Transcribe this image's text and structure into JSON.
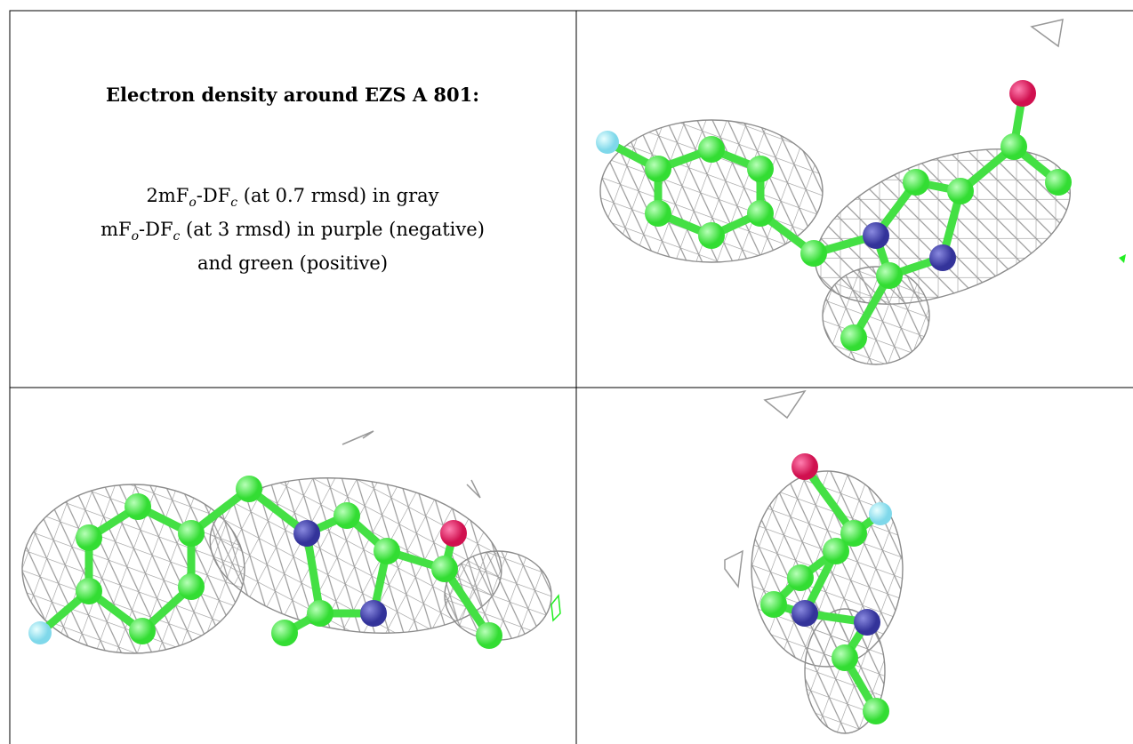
{
  "caption": {
    "title": "Electron density around EZS A 801:",
    "lines": [
      [
        {
          "text": "2mF"
        },
        {
          "text": "o",
          "sub": true
        },
        {
          "text": "-DF"
        },
        {
          "text": "c",
          "sub": true
        },
        {
          "text": " (at 0.7 rmsd) in gray"
        }
      ],
      [
        {
          "text": "mF"
        },
        {
          "text": "o",
          "sub": true
        },
        {
          "text": "-DF"
        },
        {
          "text": "c",
          "sub": true
        },
        {
          "text": " (at 3 rmsd) in purple (negative)"
        }
      ],
      [
        {
          "text": "and green (positive)"
        }
      ]
    ]
  }
}
